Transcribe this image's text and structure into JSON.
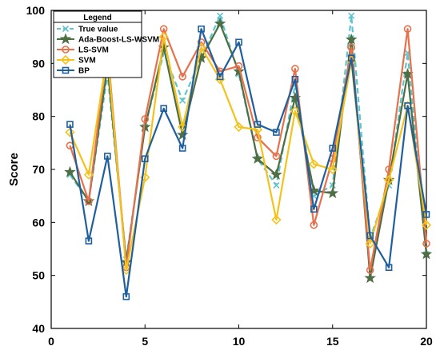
{
  "chart_data": {
    "type": "line",
    "title": "",
    "xlabel": "",
    "ylabel": "Score",
    "xlim": [
      0,
      20
    ],
    "ylim": [
      40,
      100
    ],
    "xticks": [
      0,
      5,
      10,
      15,
      20
    ],
    "yticks": [
      40,
      50,
      60,
      70,
      80,
      90,
      100
    ],
    "grid": false,
    "legend": {
      "title": "Legend",
      "placement": "top-left"
    },
    "x": [
      1,
      2,
      3,
      4,
      5,
      6,
      7,
      8,
      9,
      10,
      11,
      12,
      13,
      14,
      15,
      16,
      17,
      18,
      19,
      20
    ],
    "series": [
      {
        "name": "True value",
        "color": "#5fc4cf",
        "style": "dashed",
        "marker": "x",
        "values": [
          69,
          64,
          88,
          53,
          78,
          92,
          83,
          91,
          99,
          88,
          72,
          67,
          86,
          65,
          67,
          99,
          57,
          67,
          92,
          54
        ]
      },
      {
        "name": "Ada-Boost-LS-WSVM",
        "color": "#4f6e44",
        "style": "solid",
        "marker": "star",
        "values": [
          69.5,
          64,
          89.5,
          52.5,
          78,
          93,
          76.5,
          91,
          97.5,
          88.5,
          72,
          69,
          83.5,
          66,
          65.5,
          94.5,
          49.5,
          68,
          88,
          54
        ]
      },
      {
        "name": "LS-SVM",
        "color": "#e8704a",
        "style": "solid",
        "marker": "circle",
        "values": [
          74.5,
          64,
          93,
          51.5,
          79.5,
          96.5,
          87.5,
          94,
          88.5,
          89.5,
          76,
          72.5,
          89,
          59.5,
          72,
          93,
          51,
          70,
          96.5,
          56
        ]
      },
      {
        "name": "SVM",
        "color": "#f5c21c",
        "style": "solid",
        "marker": "diamond",
        "values": [
          77,
          69,
          92,
          51,
          68.5,
          95,
          78,
          93,
          87,
          78,
          77.5,
          60.5,
          81,
          71,
          70,
          90.5,
          56,
          68,
          82,
          59.5
        ]
      },
      {
        "name": "BP",
        "color": "#1f5f9f",
        "style": "solid",
        "marker": "square",
        "values": [
          78.5,
          56.5,
          72.5,
          46,
          72,
          81.5,
          74,
          96.5,
          87.5,
          94,
          78.5,
          77,
          87,
          62.5,
          74,
          91,
          57.5,
          51.5,
          82,
          61.5
        ]
      }
    ]
  }
}
